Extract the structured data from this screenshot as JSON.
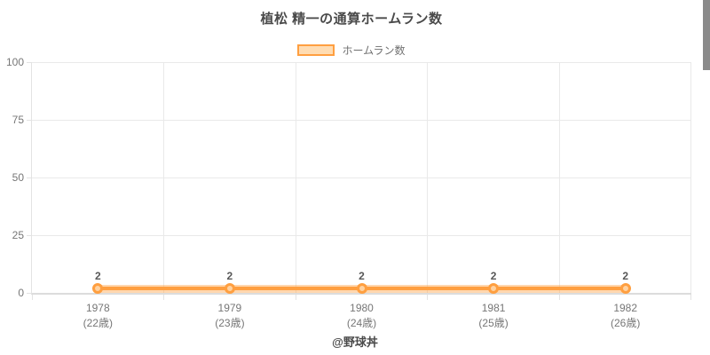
{
  "title": "植松 精一の通算ホームラン数",
  "legend": {
    "label": "ホームラン数"
  },
  "footer": "@野球丼",
  "colors": {
    "line": "#ff9f40",
    "area_fill": "rgba(255,159,64,0.42)",
    "marker_fill": "#ffd2a0",
    "legend_swatch_fill": "#ffdcb2",
    "grid": "#e9e9e9",
    "axis": "#dcdcdc",
    "tick_text": "#767676",
    "title_text": "#4a4a4a",
    "value_label_text": "#575757",
    "scrollbar": "#8a8a8a"
  },
  "chart_data": {
    "type": "area",
    "title": "植松 精一の通算ホームラン数",
    "categories": [
      "1978",
      "1979",
      "1980",
      "1981",
      "1982"
    ],
    "category_sublabels": [
      "(22歳)",
      "(23歳)",
      "(24歳)",
      "(25歳)",
      "(26歳)"
    ],
    "series": [
      {
        "name": "ホームラン数",
        "values": [
          2,
          2,
          2,
          2,
          2
        ]
      }
    ],
    "value_labels": [
      "2",
      "2",
      "2",
      "2",
      "2"
    ],
    "xlabel": "",
    "ylabel": "",
    "ylim": [
      0,
      100
    ],
    "yticks": [
      0,
      25,
      50,
      75,
      100
    ],
    "grid": true,
    "legend_position": "top",
    "annotation": "@野球丼"
  }
}
